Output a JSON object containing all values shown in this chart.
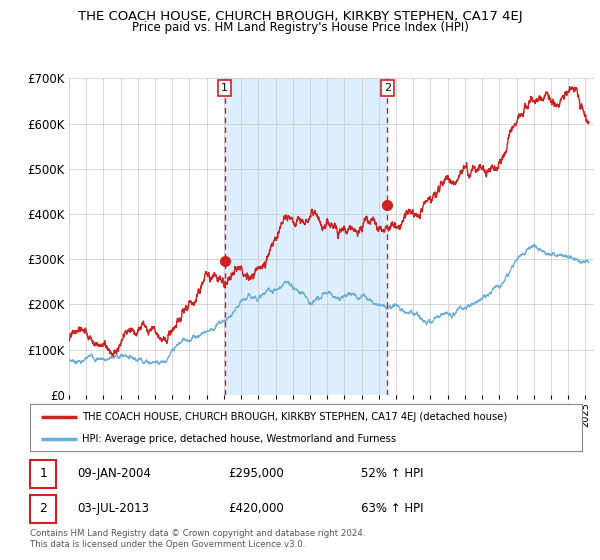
{
  "title": "THE COACH HOUSE, CHURCH BROUGH, KIRKBY STEPHEN, CA17 4EJ",
  "subtitle": "Price paid vs. HM Land Registry's House Price Index (HPI)",
  "ylim": [
    0,
    700000
  ],
  "yticks": [
    0,
    100000,
    200000,
    300000,
    400000,
    500000,
    600000,
    700000
  ],
  "ytick_labels": [
    "£0",
    "£100K",
    "£200K",
    "£300K",
    "£400K",
    "£500K",
    "£600K",
    "£700K"
  ],
  "sale1_date": 2004.04,
  "sale1_price": 295000,
  "sale1_label": "09-JAN-2004",
  "sale1_hpi": "52% ↑ HPI",
  "sale2_date": 2013.5,
  "sale2_price": 420000,
  "sale2_label": "03-JUL-2013",
  "sale2_hpi": "63% ↑ HPI",
  "hpi_color": "#6baed6",
  "price_color": "#cc2222",
  "shade_color": "#ddeeff",
  "legend_property": "THE COACH HOUSE, CHURCH BROUGH, KIRKBY STEPHEN, CA17 4EJ (detached house)",
  "legend_hpi": "HPI: Average price, detached house, Westmorland and Furness",
  "footnote": "Contains HM Land Registry data © Crown copyright and database right 2024.\nThis data is licensed under the Open Government Licence v3.0."
}
